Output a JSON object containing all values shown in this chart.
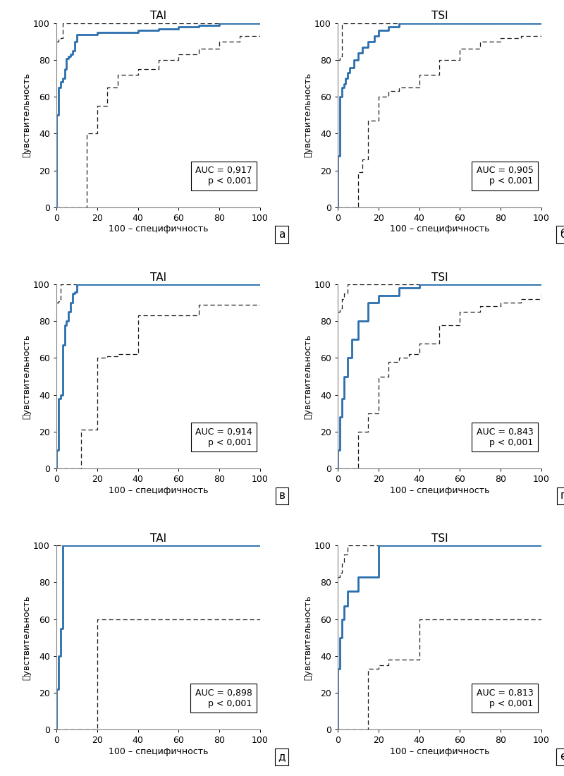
{
  "panels": [
    {
      "title": "TAI",
      "label": "а",
      "auc_text": "AUC = 0,917\np < 0,001",
      "main_x": [
        0,
        0,
        1,
        2,
        3,
        4,
        5,
        6,
        7,
        8,
        9,
        10,
        15,
        20,
        30,
        40,
        50,
        60,
        70,
        80,
        90,
        100
      ],
      "main_y": [
        0,
        50,
        65,
        68,
        70,
        75,
        81,
        82,
        83,
        85,
        90,
        94,
        94,
        95,
        95,
        96,
        97,
        98,
        99,
        100,
        100,
        100
      ],
      "upper_x": [
        0,
        1,
        2,
        3,
        5,
        10,
        20,
        30,
        40,
        50,
        60,
        70,
        80,
        90,
        100
      ],
      "upper_y": [
        90,
        91,
        92,
        100,
        100,
        100,
        100,
        100,
        100,
        100,
        100,
        100,
        100,
        100,
        100
      ],
      "lower_x": [
        0,
        5,
        8,
        10,
        12,
        15,
        20,
        25,
        30,
        40,
        50,
        60,
        70,
        80,
        90,
        100
      ],
      "lower_y": [
        0,
        0,
        0,
        0,
        0,
        40,
        55,
        65,
        72,
        75,
        80,
        83,
        86,
        90,
        93,
        96
      ]
    },
    {
      "title": "TSI",
      "label": "б",
      "auc_text": "AUC = 0,905\np < 0,001",
      "main_x": [
        0,
        0,
        1,
        2,
        3,
        4,
        5,
        6,
        8,
        10,
        12,
        15,
        18,
        20,
        25,
        30,
        40,
        50,
        60,
        70,
        80,
        90,
        100
      ],
      "main_y": [
        0,
        28,
        60,
        65,
        67,
        70,
        73,
        76,
        80,
        84,
        87,
        90,
        93,
        96,
        98,
        100,
        100,
        100,
        100,
        100,
        100,
        100,
        100
      ],
      "upper_x": [
        0,
        1,
        2,
        3,
        5,
        8,
        10,
        15,
        20,
        30,
        40,
        50,
        60,
        70,
        80,
        90,
        100
      ],
      "upper_y": [
        80,
        82,
        100,
        100,
        100,
        100,
        100,
        100,
        100,
        100,
        100,
        100,
        100,
        100,
        100,
        100,
        100
      ],
      "lower_x": [
        0,
        3,
        5,
        8,
        10,
        12,
        15,
        20,
        25,
        30,
        40,
        50,
        60,
        70,
        80,
        90,
        100
      ],
      "lower_y": [
        0,
        0,
        0,
        0,
        19,
        26,
        47,
        60,
        63,
        65,
        72,
        80,
        86,
        90,
        92,
        93,
        97
      ]
    },
    {
      "title": "TAI",
      "label": "в",
      "auc_text": "AUC = 0,914\np < 0,001",
      "main_x": [
        0,
        0,
        1,
        2,
        3,
        4,
        5,
        6,
        7,
        8,
        9,
        10,
        15,
        20,
        30,
        40,
        50,
        100
      ],
      "main_y": [
        0,
        10,
        38,
        40,
        67,
        78,
        80,
        85,
        90,
        95,
        96,
        100,
        100,
        100,
        100,
        100,
        100,
        100
      ],
      "upper_x": [
        0,
        1,
        2,
        3,
        5,
        10,
        15,
        20,
        30,
        40,
        50,
        60,
        70,
        80,
        90,
        100
      ],
      "upper_y": [
        90,
        91,
        100,
        100,
        100,
        100,
        100,
        100,
        100,
        100,
        100,
        100,
        100,
        100,
        100,
        100
      ],
      "lower_x": [
        0,
        1,
        3,
        5,
        8,
        10,
        12,
        15,
        20,
        25,
        30,
        40,
        50,
        60,
        70,
        80,
        90,
        100
      ],
      "lower_y": [
        0,
        0,
        0,
        0,
        0,
        0,
        21,
        21,
        60,
        61,
        62,
        83,
        83,
        83,
        89,
        89,
        89,
        89
      ]
    },
    {
      "title": "TSI",
      "label": "г",
      "auc_text": "AUC = 0,843\np < 0,001",
      "main_x": [
        0,
        0,
        1,
        2,
        3,
        5,
        7,
        10,
        15,
        20,
        30,
        40,
        50,
        60,
        70,
        80,
        90,
        100
      ],
      "main_y": [
        0,
        10,
        28,
        38,
        50,
        60,
        70,
        80,
        90,
        94,
        98,
        100,
        100,
        100,
        100,
        100,
        100,
        100
      ],
      "upper_x": [
        0,
        1,
        2,
        3,
        5,
        7,
        10,
        15,
        20,
        25,
        30,
        40,
        50,
        60,
        70,
        80,
        90,
        100
      ],
      "upper_y": [
        85,
        87,
        92,
        95,
        100,
        100,
        100,
        100,
        100,
        100,
        100,
        100,
        100,
        100,
        100,
        100,
        100,
        100
      ],
      "lower_x": [
        0,
        2,
        5,
        8,
        10,
        15,
        20,
        25,
        30,
        35,
        40,
        50,
        60,
        70,
        80,
        90,
        100
      ],
      "lower_y": [
        0,
        0,
        0,
        0,
        20,
        30,
        50,
        58,
        60,
        62,
        68,
        78,
        85,
        88,
        90,
        92,
        95
      ]
    },
    {
      "title": "TAI",
      "label": "д",
      "auc_text": "AUC = 0,898\np < 0,001",
      "main_x": [
        0,
        0,
        1,
        2,
        3,
        5,
        10,
        15,
        20,
        100
      ],
      "main_y": [
        0,
        22,
        40,
        55,
        100,
        100,
        100,
        100,
        100,
        100
      ],
      "upper_x": [
        0,
        1,
        2,
        3,
        5,
        10,
        15,
        20,
        100
      ],
      "upper_y": [
        100,
        100,
        100,
        100,
        100,
        100,
        100,
        100,
        100
      ],
      "lower_x": [
        0,
        5,
        10,
        15,
        20,
        25,
        100
      ],
      "lower_y": [
        0,
        0,
        0,
        0,
        60,
        60,
        60
      ]
    },
    {
      "title": "TSI",
      "label": "е",
      "auc_text": "AUC = 0,813\np < 0,001",
      "main_x": [
        0,
        0,
        1,
        2,
        3,
        5,
        10,
        20,
        40,
        50,
        60,
        70,
        80,
        90,
        100
      ],
      "main_y": [
        0,
        33,
        50,
        60,
        67,
        75,
        83,
        100,
        100,
        100,
        100,
        100,
        100,
        100,
        100
      ],
      "upper_x": [
        0,
        1,
        2,
        3,
        5,
        7,
        10,
        15,
        20,
        40,
        50,
        100
      ],
      "upper_y": [
        83,
        85,
        90,
        95,
        100,
        100,
        100,
        100,
        100,
        100,
        100,
        100
      ],
      "lower_x": [
        0,
        3,
        5,
        8,
        10,
        15,
        20,
        25,
        40,
        50,
        100
      ],
      "lower_y": [
        0,
        0,
        0,
        0,
        0,
        33,
        35,
        38,
        60,
        60,
        60
      ]
    }
  ],
  "main_color": "#2b6fad",
  "ci_color": "#1a1a1a",
  "ylabel": "䉾увствительность",
  "xlabel": "100 – специфичность",
  "yticks": [
    0,
    20,
    40,
    60,
    80,
    100
  ],
  "xticks": [
    0,
    20,
    40,
    60,
    80,
    100
  ],
  "xlim": [
    0,
    100
  ],
  "ylim": [
    0,
    100
  ],
  "background_color": "#ffffff",
  "title_fontsize": 11,
  "label_fontsize": 11,
  "tick_fontsize": 9,
  "axis_label_fontsize": 9,
  "annotation_fontsize": 9
}
